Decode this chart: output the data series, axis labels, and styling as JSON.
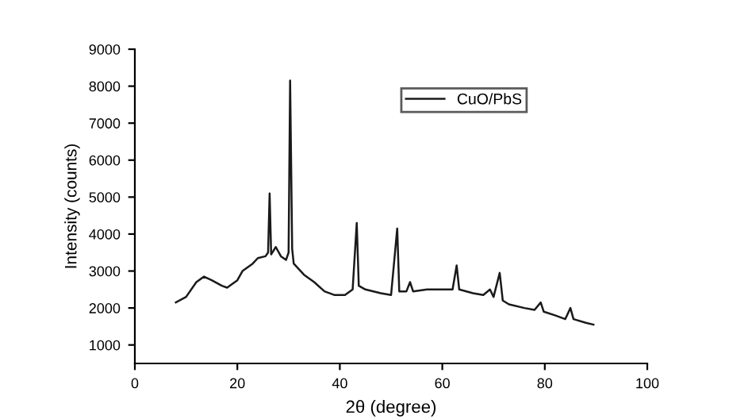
{
  "chart_data": {
    "type": "line",
    "xlabel": "2θ (degree)",
    "ylabel": "Intensity (counts)",
    "xlim": [
      0,
      100
    ],
    "ylim": [
      500,
      9000
    ],
    "xticks": [
      0,
      20,
      40,
      60,
      80,
      100
    ],
    "yticks": [
      1000,
      2000,
      3000,
      4000,
      5000,
      6000,
      7000,
      8000,
      9000
    ],
    "grid": false,
    "legend": "top right",
    "line_style": "solid",
    "series": [
      {
        "name": "CuO/PbS",
        "color": "#1a1a1a",
        "x": [
          8,
          10,
          12,
          13.5,
          15,
          17,
          18,
          20,
          21,
          23,
          24,
          25.5,
          26,
          26.3,
          26.6,
          27.5,
          28.5,
          29.5,
          30,
          30.3,
          30.7,
          31,
          33,
          35,
          37,
          39,
          41,
          42.5,
          43.3,
          43.7,
          45,
          48,
          50,
          51.2,
          51.6,
          53,
          53.7,
          54.3,
          57,
          60,
          62,
          62.8,
          63.3,
          66,
          68,
          69.3,
          70,
          71.2,
          71.8,
          73,
          76,
          78,
          79.2,
          79.8,
          82,
          84,
          85,
          85.6,
          88,
          89.5
        ],
        "values": [
          2150,
          2300,
          2700,
          2850,
          2750,
          2600,
          2550,
          2750,
          3000,
          3200,
          3350,
          3400,
          3500,
          5100,
          3450,
          3650,
          3400,
          3300,
          3500,
          8150,
          3600,
          3200,
          2900,
          2700,
          2450,
          2350,
          2350,
          2500,
          4300,
          2600,
          2500,
          2400,
          2350,
          4150,
          2450,
          2450,
          2700,
          2450,
          2500,
          2500,
          2500,
          3150,
          2500,
          2400,
          2350,
          2500,
          2300,
          2950,
          2200,
          2100,
          2000,
          1950,
          2150,
          1900,
          1800,
          1700,
          2000,
          1700,
          1600,
          1550
        ]
      }
    ]
  }
}
